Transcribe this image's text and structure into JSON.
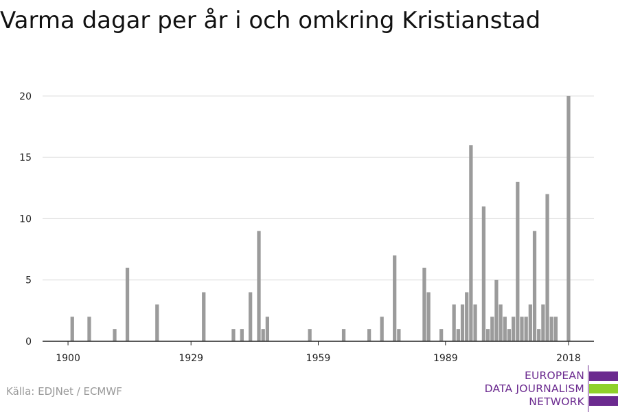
{
  "title": "Varma dagar per år i och omkring Kristianstad",
  "source": "Källa: EDJNet / ECMWF",
  "logo": {
    "lines": [
      "EUROPEAN",
      "DATA JOURNALISM",
      "NETWORK"
    ],
    "colors": [
      "#6b2a8f",
      "#8fd12a",
      "#6b2a8f"
    ]
  },
  "chart_data": {
    "type": "bar",
    "bar_color": "#9b9b9b",
    "x": [
      1901,
      1905,
      1911,
      1914,
      1921,
      1932,
      1939,
      1941,
      1943,
      1945,
      1946,
      1947,
      1957,
      1965,
      1971,
      1974,
      1977,
      1978,
      1984,
      1985,
      1988,
      1991,
      1992,
      1993,
      1994,
      1995,
      1996,
      1998,
      1999,
      2000,
      2001,
      2002,
      2003,
      2004,
      2005,
      2006,
      2007,
      2008,
      2009,
      2010,
      2011,
      2012,
      2013,
      2014,
      2015,
      2018
    ],
    "values": [
      2,
      2,
      1,
      6,
      3,
      4,
      1,
      1,
      4,
      9,
      1,
      2,
      1,
      1,
      1,
      2,
      7,
      1,
      6,
      4,
      1,
      3,
      1,
      3,
      4,
      16,
      3,
      11,
      1,
      2,
      5,
      3,
      2,
      1,
      2,
      13,
      2,
      2,
      3,
      9,
      1,
      3,
      12,
      2,
      2,
      20
    ],
    "x_ticks": [
      1900,
      1929,
      1959,
      1989,
      2018
    ],
    "y_ticks": [
      0,
      5,
      10,
      15,
      20
    ],
    "xlim": [
      1894,
      2024
    ],
    "ylim": [
      0,
      21
    ],
    "grid": true,
    "xlabel": "",
    "ylabel": ""
  }
}
